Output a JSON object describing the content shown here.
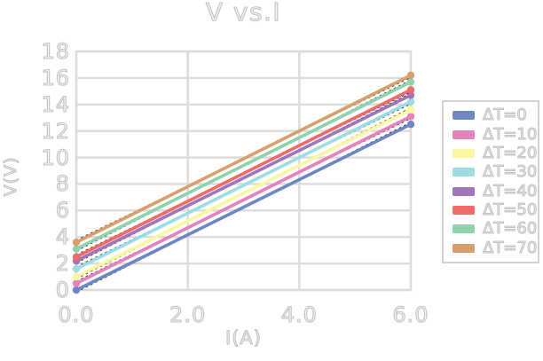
{
  "colors": {
    "background": "#ffffff",
    "grid": "#dcdcdc",
    "plot_border": "#dcdcdc",
    "text_outline": "#c3c3c3",
    "text_fill": "#f4f4f4",
    "fit_line": "#222222",
    "legend_border": "#d2d2d2"
  },
  "chart_data": {
    "type": "line",
    "title": "V vs.I",
    "xlabel": "I(A)",
    "ylabel": "V(V)",
    "x": [
      0,
      6
    ],
    "xlim": [
      0,
      6
    ],
    "ylim": [
      0,
      18
    ],
    "x_ticks": [
      0.0,
      2.0,
      4.0,
      6.0
    ],
    "x_tick_labels": [
      "0.0",
      "2.0",
      "4.0",
      "6.0"
    ],
    "y_ticks": [
      0,
      2,
      4,
      6,
      8,
      10,
      12,
      14,
      16,
      18
    ],
    "grid": true,
    "legend_position": "right-outside",
    "marker": "circle",
    "fit_lines": "black dotted trendline behind each series",
    "series": [
      {
        "name": "ΔT=0",
        "color": "#6e86c3",
        "values": [
          0.0,
          12.5
        ]
      },
      {
        "name": "ΔT=10",
        "color": "#e583b9",
        "values": [
          0.5,
          13.1
        ]
      },
      {
        "name": "ΔT=20",
        "color": "#faf6a2",
        "values": [
          1.0,
          13.6
        ]
      },
      {
        "name": "ΔT=30",
        "color": "#9cdce2",
        "values": [
          1.6,
          14.2
        ]
      },
      {
        "name": "ΔT=40",
        "color": "#a273b8",
        "values": [
          2.2,
          14.7
        ]
      },
      {
        "name": "ΔT=50",
        "color": "#ee6b69",
        "values": [
          2.5,
          15.1
        ]
      },
      {
        "name": "ΔT=60",
        "color": "#8fd2ab",
        "values": [
          3.1,
          15.7
        ]
      },
      {
        "name": "ΔT=70",
        "color": "#d89e6d",
        "values": [
          3.6,
          16.2
        ]
      }
    ]
  }
}
